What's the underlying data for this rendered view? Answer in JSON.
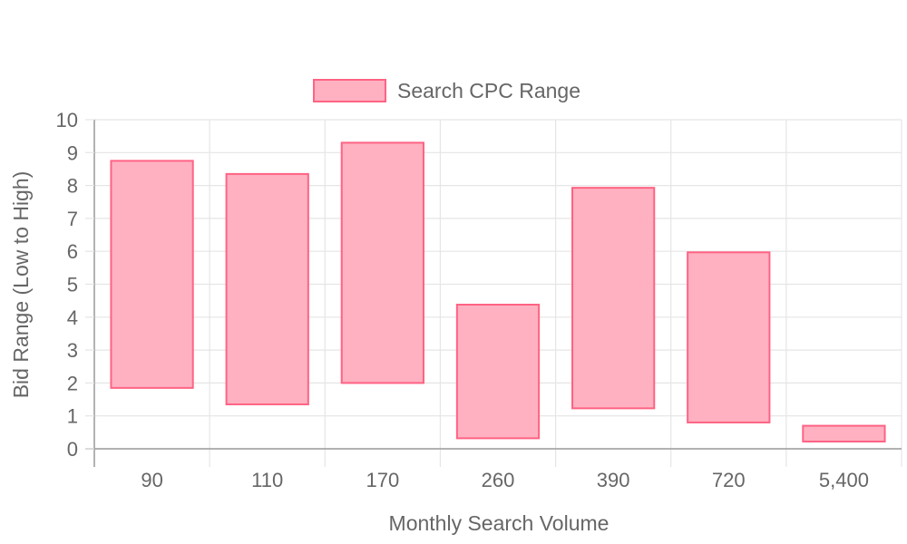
{
  "chart_data": {
    "type": "bar",
    "subtype": "floating-range",
    "title": "",
    "xlabel": "Monthly Search Volume",
    "ylabel": "Bid Range (Low to High)",
    "categories": [
      "90",
      "110",
      "170",
      "260",
      "390",
      "720",
      "5,400"
    ],
    "series": [
      {
        "name": "Search CPC Range",
        "ranges": [
          [
            1.85,
            8.75
          ],
          [
            1.35,
            8.35
          ],
          [
            2.0,
            9.3
          ],
          [
            0.32,
            4.38
          ],
          [
            1.23,
            7.93
          ],
          [
            0.8,
            5.97
          ],
          [
            0.22,
            0.7
          ]
        ]
      }
    ],
    "ylim": [
      0,
      10
    ],
    "yticks": [
      "0",
      "1",
      "2",
      "3",
      "4",
      "5",
      "6",
      "7",
      "8",
      "9",
      "10"
    ],
    "grid": true,
    "legend": "top-center",
    "colors": {
      "fill": "#ffb1c1",
      "stroke": "#ff6384",
      "grid": "#e5e5e5",
      "axis": "#999999",
      "text": "#666666"
    }
  }
}
